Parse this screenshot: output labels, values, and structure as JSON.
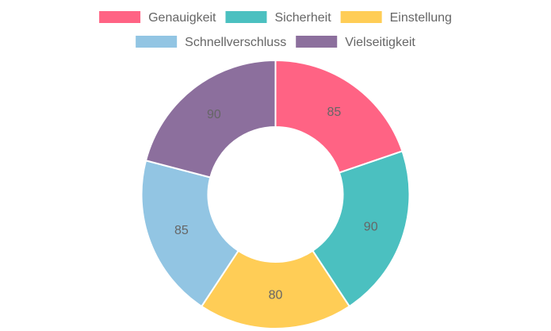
{
  "chart_data": {
    "type": "pie",
    "variant": "doughnut",
    "title": "",
    "legend_position": "top",
    "categories": [
      "Genauigkeit",
      "Sicherheit",
      "Einstellung",
      "Schnellverschluss",
      "Vielseitigkeit"
    ],
    "values": [
      85,
      90,
      80,
      85,
      90
    ],
    "colors": [
      "#ff6384",
      "#4bc0c0",
      "#ffcd56",
      "#92c5e3",
      "#8c6f9d"
    ],
    "data_labels_shown": true
  }
}
